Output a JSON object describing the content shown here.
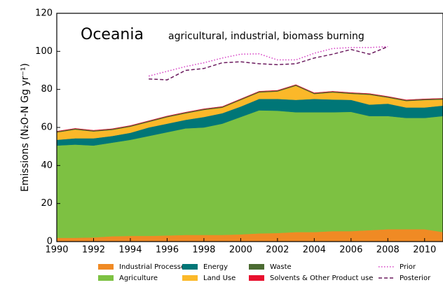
{
  "chart_data": {
    "type": "area",
    "stacked": true,
    "title": "Oceania",
    "subtitle": "agricultural, industrial, biomass burning",
    "y_label": "Emissions (N₂O-N Gg yr⁻¹)",
    "x": [
      1990,
      1991,
      1992,
      1993,
      1994,
      1995,
      1996,
      1997,
      1998,
      1999,
      2000,
      2001,
      2002,
      2003,
      2004,
      2005,
      2006,
      2007,
      2008,
      2009,
      2010,
      2011
    ],
    "xlim": [
      1990,
      2011
    ],
    "xticks": [
      1990,
      1992,
      1994,
      1996,
      1998,
      2000,
      2002,
      2004,
      2006,
      2008,
      2010
    ],
    "ylim": [
      0,
      120
    ],
    "yticks": [
      0,
      20,
      40,
      60,
      80,
      100,
      120
    ],
    "series": [
      {
        "name": "Industrial Processes",
        "type": "area",
        "color": "#f08a24",
        "values": [
          2,
          2,
          2.2,
          2.8,
          3,
          3,
          3.2,
          3.5,
          3.5,
          3.5,
          3.8,
          4.3,
          4.5,
          5,
          5,
          5.5,
          5.5,
          6,
          6.5,
          6.5,
          6.5,
          5
        ]
      },
      {
        "name": "Agriculture",
        "type": "area",
        "color": "#7dc142",
        "values": [
          48.5,
          49,
          48.3,
          49.2,
          50.5,
          52.5,
          54.3,
          56,
          56.5,
          58.5,
          61.7,
          64.7,
          64.3,
          63,
          63,
          62.5,
          62.7,
          60,
          59.5,
          58.5,
          58.5,
          61
        ]
      },
      {
        "name": "Energy",
        "type": "area",
        "color": "#007677",
        "values": [
          3,
          3.3,
          3.8,
          3.5,
          3.7,
          4.5,
          4.5,
          4.5,
          5.5,
          5.5,
          5.5,
          6,
          6.2,
          6.5,
          7,
          6.7,
          6.3,
          6,
          6.5,
          5.5,
          5.5,
          5.5
        ]
      },
      {
        "name": "Land Use",
        "type": "area",
        "color": "#fbb829",
        "values": [
          3.9,
          4.6,
          3.6,
          3.2,
          3.2,
          2.9,
          3.4,
          3.4,
          3.7,
          2.9,
          3.4,
          3.4,
          3.9,
          7.4,
          2.6,
          3.7,
          3.2,
          5.2,
          3.2,
          3.4,
          3.9,
          3.2
        ]
      },
      {
        "name": "Waste",
        "type": "area",
        "color": "#4b6b32",
        "values": [
          0.5,
          0.5,
          0.5,
          0.5,
          0.5,
          0.5,
          0.5,
          0.5,
          0.5,
          0.5,
          0.5,
          0.5,
          0.5,
          0.5,
          0.5,
          0.5,
          0.5,
          0.5,
          0.5,
          0.5,
          0.5,
          0.5
        ]
      },
      {
        "name": "Solvents & Other Product use",
        "type": "area",
        "color": "#e8102e",
        "values": [
          0.1,
          0.1,
          0.1,
          0.1,
          0.1,
          0.1,
          0.1,
          0.1,
          0.1,
          0.1,
          0.1,
          0.1,
          0.1,
          0.1,
          0.1,
          0.1,
          0.1,
          0.1,
          0.1,
          0.1,
          0.1,
          0.1
        ]
      },
      {
        "name": "Prior",
        "type": "line",
        "linestyle": "dotted",
        "color": "#d63fc4",
        "values": [
          null,
          null,
          null,
          null,
          null,
          87,
          89.5,
          92,
          94,
          96.5,
          98.5,
          98.7,
          95.5,
          95.5,
          99,
          101.5,
          102,
          102,
          102.5,
          null,
          null,
          null
        ]
      },
      {
        "name": "Posterior",
        "type": "line",
        "linestyle": "dashed",
        "color": "#6b1a5e",
        "values": [
          null,
          null,
          null,
          null,
          null,
          85.5,
          85,
          90,
          91,
          94,
          94.5,
          93.5,
          93,
          93.5,
          96.5,
          98.5,
          101,
          98.5,
          102.5,
          null,
          null,
          null
        ]
      }
    ]
  }
}
